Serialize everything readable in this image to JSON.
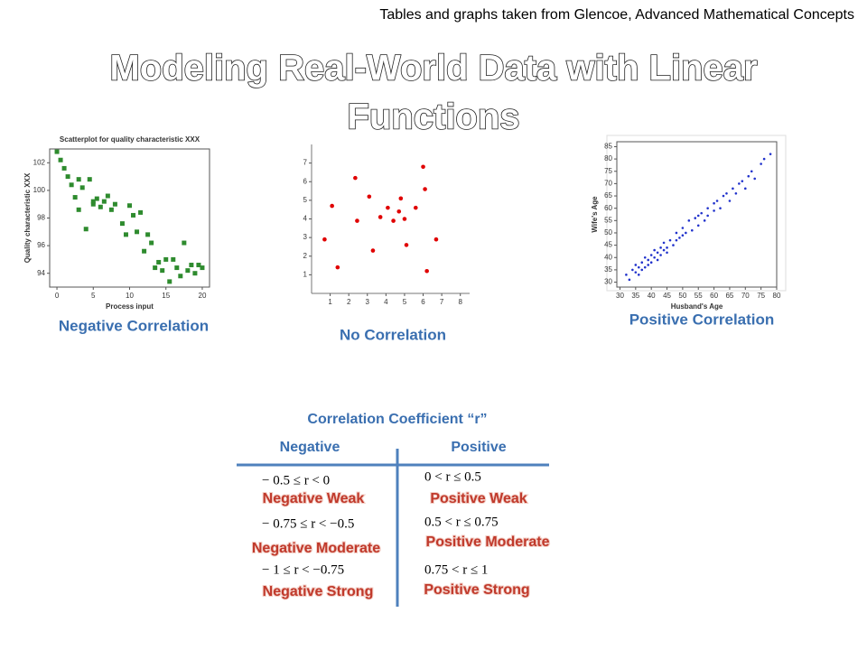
{
  "header": {
    "citation": "Tables and graphs taken from Glencoe, Advanced Mathematical Concepts",
    "title_line_1": "Modeling Real-World Data with Linear",
    "title_line_2": "Functions"
  },
  "captions": [
    "Negative Correlation",
    "No Correlation",
    "Positive Correlation"
  ],
  "table": {
    "title": "Correlation Coefficient “r”",
    "headers": [
      "Negative",
      "Positive"
    ],
    "rows": [
      [
        {
          "range": "− 0.5 ≤ r < 0",
          "label": "Negative Weak"
        },
        {
          "range": "0 < r ≤ 0.5",
          "label": "Positive Weak"
        }
      ],
      [
        {
          "range": "− 0.75 ≤ r < −0.5",
          "label": "Negative Moderate"
        },
        {
          "range": "0.5 < r ≤ 0.75",
          "label": "Positive Moderate"
        }
      ],
      [
        {
          "range": "− 1 ≤ r < −0.75",
          "label": "Negative Strong"
        },
        {
          "range": "0.75 < r ≤ 1",
          "label": "Positive Strong"
        }
      ]
    ]
  },
  "chart_data": [
    {
      "type": "scatter",
      "title": "Scatterplot for quality characteristic XXX",
      "x_label": "Process input",
      "y_label": "Quality characteristic XXX",
      "color": "#2e8b2e",
      "marker": "square",
      "x": [
        0,
        0.5,
        1,
        1.5,
        2,
        2.5,
        3,
        3,
        3.5,
        4,
        4.5,
        5,
        5,
        5.5,
        6,
        6.5,
        7,
        7.5,
        8,
        9,
        9.5,
        10,
        10.5,
        11,
        11.5,
        12,
        12.5,
        13,
        13.5,
        14,
        14.5,
        15,
        15.5,
        16,
        16.5,
        17,
        17.5,
        18,
        18.5,
        19,
        19.5,
        20
      ],
      "values": [
        102.8,
        102.2,
        101.6,
        101,
        100.4,
        99.5,
        100.8,
        98.6,
        100.2,
        97.2,
        100.8,
        99,
        99.2,
        99.4,
        98.8,
        99.2,
        99.6,
        98.6,
        99,
        97.6,
        96.8,
        98.9,
        98.2,
        97,
        98.4,
        95.6,
        96.8,
        96.2,
        94.4,
        94.8,
        94.2,
        95,
        93.4,
        95,
        94.4,
        93.8,
        96.2,
        94.2,
        94.6,
        94,
        94.6,
        94.4
      ],
      "xlim": [
        -1,
        21
      ],
      "ylim": [
        93,
        103
      ],
      "xticks": [
        0,
        5,
        10,
        15,
        20
      ],
      "yticks": [
        94,
        96,
        98,
        100,
        102
      ]
    },
    {
      "type": "scatter",
      "color": "#e00000",
      "marker": "circle",
      "x": [
        0.7,
        1.1,
        1.4,
        2.35,
        2.45,
        3.1,
        3.3,
        3.7,
        4.1,
        4.4,
        4.7,
        4.8,
        5.0,
        5.1,
        5.6,
        6.0,
        6.1,
        6.2,
        6.7
      ],
      "values": [
        2.9,
        4.7,
        1.4,
        6.2,
        3.9,
        5.2,
        2.3,
        4.1,
        4.6,
        3.9,
        4.4,
        5.1,
        4.0,
        2.6,
        4.6,
        6.8,
        5.6,
        1.2,
        2.9
      ],
      "xlim": [
        0,
        8.5
      ],
      "ylim": [
        0,
        8
      ],
      "xticks": [
        1,
        2,
        3,
        4,
        5,
        6,
        7,
        8
      ],
      "yticks": [
        1,
        2,
        3,
        4,
        5,
        6,
        7
      ]
    },
    {
      "type": "scatter",
      "x_label": "Husband's Age",
      "y_label": "Wife's Age",
      "color": "#2233cc",
      "marker": "circle",
      "x": [
        32,
        33,
        34,
        35,
        35,
        36,
        36,
        37,
        37,
        38,
        38,
        39,
        39,
        40,
        40,
        41,
        41,
        42,
        42,
        43,
        43,
        44,
        44,
        45,
        45,
        46,
        47,
        48,
        48,
        49,
        50,
        50,
        51,
        52,
        53,
        54,
        55,
        55,
        56,
        57,
        58,
        58,
        60,
        60,
        61,
        62,
        63,
        64,
        65,
        66,
        67,
        68,
        69,
        70,
        71,
        72,
        73,
        75,
        76,
        78
      ],
      "values": [
        33,
        31,
        35,
        34,
        37,
        33,
        36,
        38,
        35,
        36,
        40,
        37,
        39,
        41,
        38,
        40,
        43,
        39,
        42,
        44,
        41,
        43,
        46,
        44,
        42,
        47,
        45,
        50,
        47,
        48,
        52,
        49,
        50,
        55,
        51,
        56,
        53,
        57,
        58,
        55,
        60,
        57,
        62,
        59,
        63,
        60,
        65,
        66,
        63,
        68,
        66,
        70,
        71,
        68,
        73,
        75,
        72,
        78,
        80,
        82
      ],
      "xlim": [
        29,
        80
      ],
      "ylim": [
        28,
        87
      ],
      "xticks": [
        30,
        35,
        40,
        45,
        50,
        55,
        60,
        65,
        70,
        75,
        80
      ],
      "yticks": [
        30,
        35,
        40,
        45,
        50,
        55,
        60,
        65,
        70,
        75,
        80,
        85
      ]
    }
  ]
}
